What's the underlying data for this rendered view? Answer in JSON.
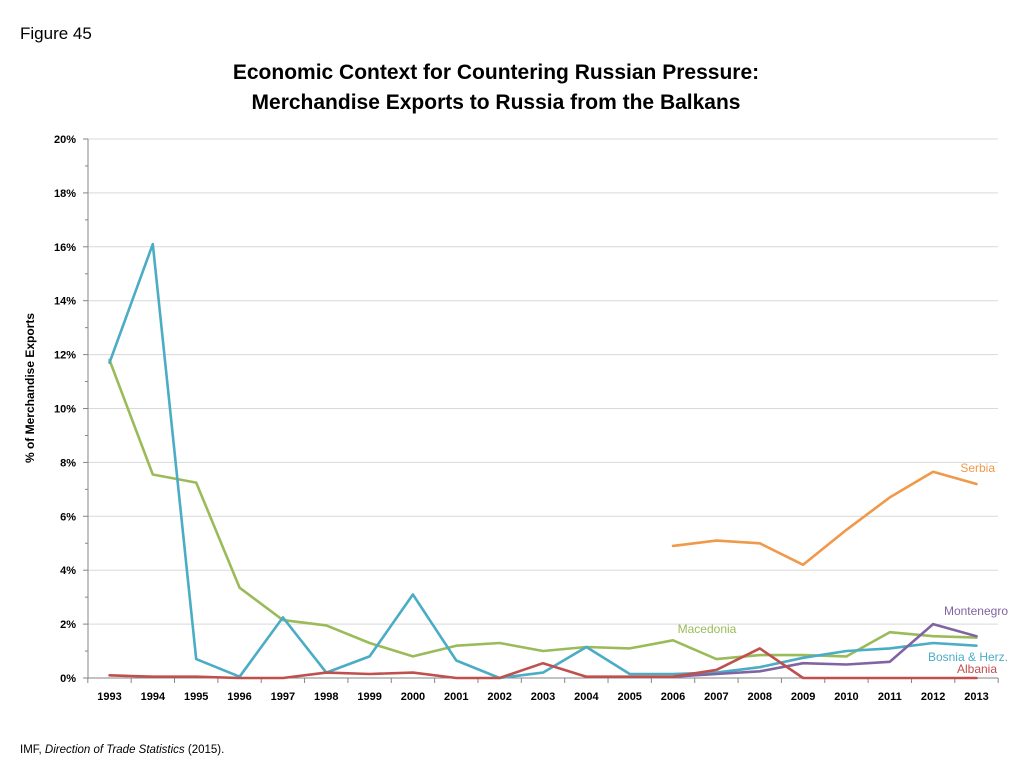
{
  "figure_label": "Figure 45",
  "source": {
    "prefix": "IMF, ",
    "italic": "Direction of Trade Statistics",
    "suffix": " (2015)."
  },
  "chart_data": {
    "type": "line",
    "title_line1": "Economic Context for Countering Russian Pressure:",
    "title_line2": "Merchandise Exports to Russia from the Balkans",
    "xlabel": "",
    "ylabel": "% of Merchandise Exports",
    "ylim": [
      0,
      20
    ],
    "yticks": [
      "0%",
      "2%",
      "4%",
      "6%",
      "8%",
      "10%",
      "12%",
      "14%",
      "16%",
      "18%",
      "20%"
    ],
    "grid": true,
    "categories": [
      "1993",
      "1994",
      "1995",
      "1996",
      "1997",
      "1998",
      "1999",
      "2000",
      "2001",
      "2002",
      "2003",
      "2004",
      "2005",
      "2006",
      "2007",
      "2008",
      "2009",
      "2010",
      "2011",
      "2012",
      "2013"
    ],
    "series": [
      {
        "name": "Serbia",
        "color": "#f0994a",
        "values": [
          null,
          null,
          null,
          null,
          null,
          null,
          null,
          null,
          null,
          null,
          null,
          null,
          null,
          4.9,
          5.1,
          5.0,
          4.2,
          5.5,
          6.7,
          7.65,
          7.2
        ]
      },
      {
        "name": "Macedonia",
        "color": "#9bbb59",
        "values": [
          11.8,
          7.55,
          7.25,
          3.35,
          2.15,
          1.95,
          1.3,
          0.8,
          1.2,
          1.3,
          1.0,
          1.15,
          1.1,
          1.4,
          0.7,
          0.85,
          0.85,
          0.8,
          1.7,
          1.55,
          1.5
        ]
      },
      {
        "name": "Bosnia & Herz.",
        "color": "#4bacc6",
        "values": [
          11.7,
          16.1,
          0.7,
          0.05,
          2.25,
          0.2,
          0.8,
          3.1,
          0.65,
          0.0,
          0.2,
          1.15,
          0.15,
          0.15,
          0.2,
          0.4,
          0.75,
          1.0,
          1.1,
          1.3,
          1.2
        ]
      },
      {
        "name": "Montenegro",
        "color": "#8064a2",
        "values": [
          null,
          null,
          null,
          null,
          null,
          null,
          null,
          null,
          null,
          null,
          null,
          null,
          null,
          0.05,
          0.15,
          0.25,
          0.55,
          0.5,
          0.6,
          2.0,
          1.55
        ]
      },
      {
        "name": "Albania",
        "color": "#c0504d",
        "values": [
          0.1,
          0.05,
          0.05,
          0.0,
          0.0,
          0.2,
          0.15,
          0.2,
          0.0,
          0.0,
          0.55,
          0.05,
          0.05,
          0.05,
          0.3,
          1.1,
          0.0,
          0.0,
          0.0,
          0.0,
          0.0
        ]
      }
    ]
  }
}
